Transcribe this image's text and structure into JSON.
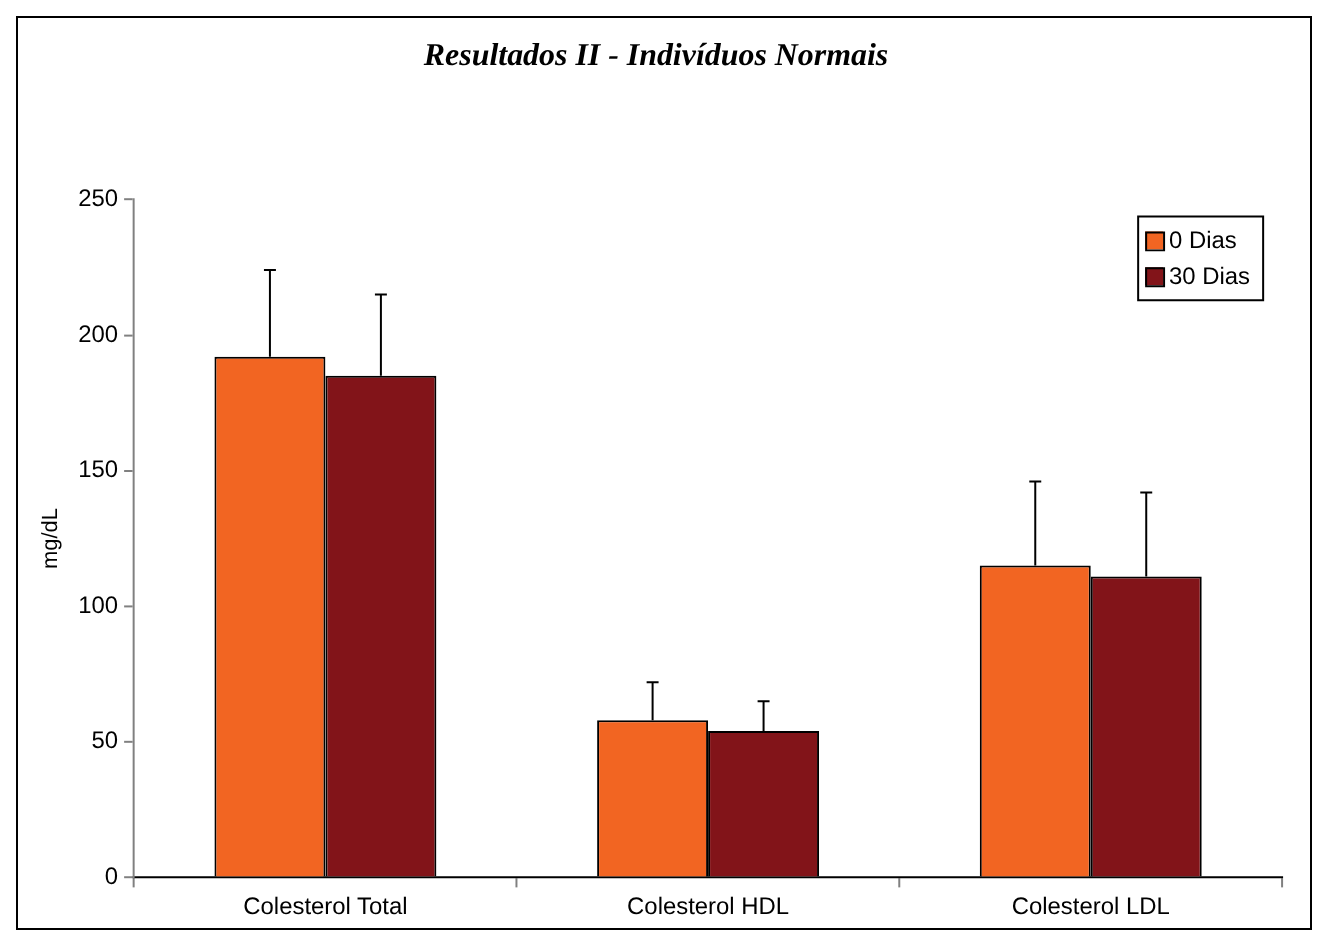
{
  "chart_data": {
    "type": "bar",
    "title": "Resultados II - Indivíduos Normais",
    "ylabel": "mg/dL",
    "categories": [
      "Colesterol Total",
      "Colesterol HDL",
      "Colesterol LDL"
    ],
    "series": [
      {
        "name": "0 Dias",
        "color": "#f26522",
        "values": [
          192,
          58,
          115
        ],
        "errors": [
          [
            192,
            224
          ],
          [
            58,
            72
          ],
          [
            115,
            146
          ]
        ]
      },
      {
        "name": "30 Dias",
        "color": "#821419",
        "values": [
          185,
          54,
          111
        ],
        "errors": [
          [
            185,
            215
          ],
          [
            54,
            65
          ],
          [
            111,
            142
          ]
        ]
      }
    ],
    "ylim": [
      0,
      250
    ],
    "yticks": [
      0,
      50,
      100,
      150,
      200,
      250
    ],
    "grid": false,
    "legend": "top right"
  }
}
